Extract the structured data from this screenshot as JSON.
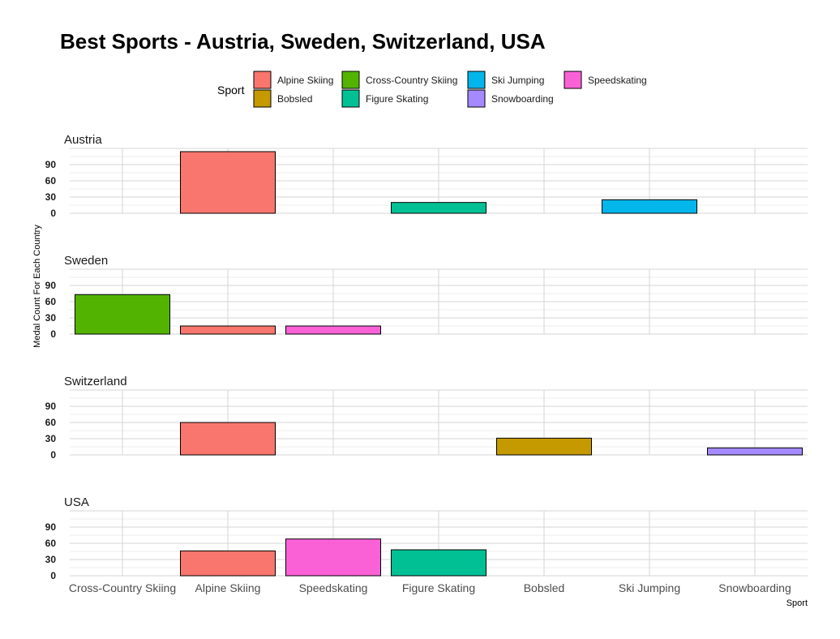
{
  "chart_data": {
    "type": "bar",
    "title": "Best Sports - Austria, Sweden, Switzerland, USA",
    "xlabel": "Sport",
    "ylabel": "Medal Count For Each Country",
    "categories": [
      "Cross-Country Skiing",
      "Alpine Skiing",
      "Speedskating",
      "Figure Skating",
      "Bobsled",
      "Ski Jumping",
      "Snowboarding"
    ],
    "y_ticks": [
      0,
      30,
      60,
      90
    ],
    "ylim": [
      0,
      120
    ],
    "grid": true,
    "legend": {
      "title": "Sport",
      "position": "top",
      "entries": [
        {
          "label": "Alpine Skiing",
          "color": "#F8766D"
        },
        {
          "label": "Bobsled",
          "color": "#C49A00"
        },
        {
          "label": "Cross-Country Skiing",
          "color": "#53B400"
        },
        {
          "label": "Figure Skating",
          "color": "#00C094"
        },
        {
          "label": "Ski Jumping",
          "color": "#00B6EB"
        },
        {
          "label": "Snowboarding",
          "color": "#A58AFF"
        },
        {
          "label": "Speedskating",
          "color": "#FB61D7"
        }
      ]
    },
    "panels": [
      {
        "facet": "Austria",
        "bars": [
          {
            "sport": "Alpine Skiing",
            "value": 114
          },
          {
            "sport": "Figure Skating",
            "value": 20
          },
          {
            "sport": "Ski Jumping",
            "value": 25
          }
        ]
      },
      {
        "facet": "Sweden",
        "bars": [
          {
            "sport": "Cross-Country Skiing",
            "value": 73
          },
          {
            "sport": "Alpine Skiing",
            "value": 15
          },
          {
            "sport": "Speedskating",
            "value": 15
          }
        ]
      },
      {
        "facet": "Switzerland",
        "bars": [
          {
            "sport": "Alpine Skiing",
            "value": 60
          },
          {
            "sport": "Bobsled",
            "value": 31
          },
          {
            "sport": "Snowboarding",
            "value": 13
          }
        ]
      },
      {
        "facet": "USA",
        "bars": [
          {
            "sport": "Alpine Skiing",
            "value": 46
          },
          {
            "sport": "Speedskating",
            "value": 68
          },
          {
            "sport": "Figure Skating",
            "value": 48
          }
        ]
      }
    ]
  }
}
